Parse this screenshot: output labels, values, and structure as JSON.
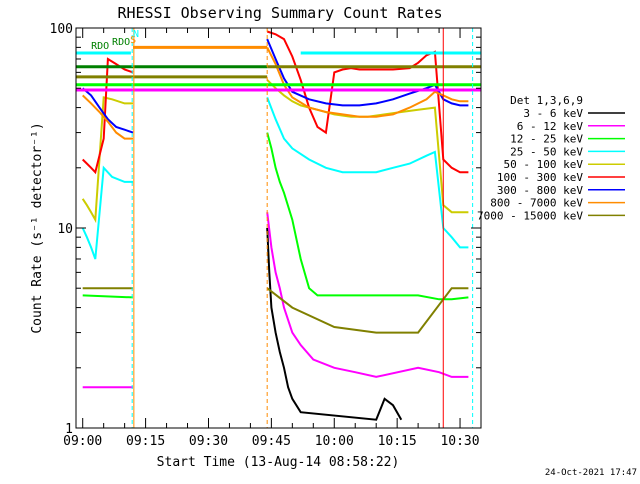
{
  "chart_data": {
    "type": "line",
    "title": "RHESSI Observing Summary Count Rates",
    "xlabel": "Start Time (13-Aug-14 08:58:22)",
    "ylabel": "Count Rate (s⁻¹ detector⁻¹)",
    "x_ticks": [
      "09:00",
      "09:15",
      "09:30",
      "09:45",
      "10:00",
      "10:15",
      "10:30"
    ],
    "x_tick_minutes": [
      0,
      15,
      30,
      45,
      60,
      75,
      90
    ],
    "x_range_minutes": [
      -1.6,
      95
    ],
    "y_scale": "log",
    "ylim": [
      1,
      100
    ],
    "y_ticks": [
      "1",
      "10",
      "100"
    ],
    "legend_title": "Det 1,3,6,9",
    "legend_position": "right",
    "series": [
      {
        "name": "3 - 6 keV",
        "color": "#000000",
        "points": [
          [
            44,
            10
          ],
          [
            44.5,
            6
          ],
          [
            45,
            4
          ],
          [
            46,
            3
          ],
          [
            47,
            2.4
          ],
          [
            48,
            2
          ],
          [
            49,
            1.6
          ],
          [
            50,
            1.4
          ],
          [
            52,
            1.2
          ],
          [
            70,
            1.1
          ],
          [
            72,
            1.4
          ],
          [
            74,
            1.3
          ],
          [
            76,
            1.1
          ]
        ]
      },
      {
        "name": "6 - 12 keV",
        "color": "#ff00ff",
        "points": [
          [
            0,
            1.6
          ],
          [
            12,
            1.6
          ],
          [
            44,
            12
          ],
          [
            45,
            8
          ],
          [
            46,
            6
          ],
          [
            47,
            5
          ],
          [
            48,
            4
          ],
          [
            50,
            3
          ],
          [
            52,
            2.6
          ],
          [
            55,
            2.2
          ],
          [
            60,
            2
          ],
          [
            65,
            1.9
          ],
          [
            70,
            1.8
          ],
          [
            80,
            2
          ],
          [
            85,
            1.9
          ],
          [
            88,
            1.8
          ],
          [
            92,
            1.8
          ]
        ]
      },
      {
        "name": "12 - 25 keV",
        "color": "#00ff00",
        "points": [
          [
            0,
            4.6
          ],
          [
            12,
            4.5
          ],
          [
            44,
            30
          ],
          [
            45,
            25
          ],
          [
            46,
            20
          ],
          [
            47,
            17
          ],
          [
            48,
            15
          ],
          [
            50,
            11
          ],
          [
            52,
            7
          ],
          [
            54,
            5
          ],
          [
            56,
            4.6
          ],
          [
            60,
            4.6
          ],
          [
            70,
            4.6
          ],
          [
            80,
            4.6
          ],
          [
            85,
            4.4
          ],
          [
            88,
            4.4
          ],
          [
            92,
            4.5
          ]
        ]
      },
      {
        "name": "25 - 50 keV",
        "color": "#00ffff",
        "points": [
          [
            0,
            10
          ],
          [
            1,
            9
          ],
          [
            2,
            8
          ],
          [
            3,
            7
          ],
          [
            5,
            20
          ],
          [
            7,
            18
          ],
          [
            10,
            17
          ],
          [
            12,
            17
          ],
          [
            44,
            45
          ],
          [
            46,
            35
          ],
          [
            48,
            28
          ],
          [
            50,
            25
          ],
          [
            54,
            22
          ],
          [
            58,
            20
          ],
          [
            62,
            19
          ],
          [
            66,
            19
          ],
          [
            70,
            19
          ],
          [
            74,
            20
          ],
          [
            78,
            21
          ],
          [
            82,
            23
          ],
          [
            84,
            24
          ],
          [
            86,
            10
          ],
          [
            88,
            9
          ],
          [
            90,
            8
          ],
          [
            92,
            8
          ]
        ]
      },
      {
        "name": "50 - 100 keV",
        "color": "#cccc00",
        "points": [
          [
            0,
            14
          ],
          [
            1,
            13
          ],
          [
            2,
            12
          ],
          [
            3,
            11
          ],
          [
            5,
            45
          ],
          [
            7,
            44
          ],
          [
            10,
            42
          ],
          [
            12,
            42
          ],
          [
            44,
            55
          ],
          [
            46,
            50
          ],
          [
            48,
            46
          ],
          [
            50,
            43
          ],
          [
            52,
            41
          ],
          [
            56,
            39
          ],
          [
            60,
            37
          ],
          [
            64,
            36
          ],
          [
            68,
            36
          ],
          [
            72,
            37
          ],
          [
            76,
            38
          ],
          [
            80,
            39
          ],
          [
            84,
            40
          ],
          [
            86,
            13
          ],
          [
            88,
            12
          ],
          [
            90,
            12
          ],
          [
            92,
            12
          ]
        ]
      },
      {
        "name": "100 - 300 keV",
        "color": "#ff0000",
        "points": [
          [
            0,
            22
          ],
          [
            1,
            21
          ],
          [
            2,
            20
          ],
          [
            3,
            19
          ],
          [
            5,
            28
          ],
          [
            6,
            70
          ],
          [
            8,
            66
          ],
          [
            10,
            62
          ],
          [
            12,
            60
          ],
          [
            44,
            96
          ],
          [
            46,
            93
          ],
          [
            48,
            88
          ],
          [
            50,
            72
          ],
          [
            52,
            55
          ],
          [
            54,
            40
          ],
          [
            56,
            32
          ],
          [
            58,
            30
          ],
          [
            60,
            60
          ],
          [
            62,
            62
          ],
          [
            64,
            63
          ],
          [
            66,
            62
          ],
          [
            70,
            62
          ],
          [
            74,
            62
          ],
          [
            78,
            63
          ],
          [
            80,
            67
          ],
          [
            82,
            73
          ],
          [
            84,
            76
          ],
          [
            86,
            22
          ],
          [
            88,
            20
          ],
          [
            90,
            19
          ],
          [
            92,
            19
          ]
        ]
      },
      {
        "name": "300 - 800 keV",
        "color": "#0000ff",
        "points": [
          [
            0,
            50
          ],
          [
            2,
            46
          ],
          [
            4,
            40
          ],
          [
            6,
            35
          ],
          [
            8,
            32
          ],
          [
            10,
            31
          ],
          [
            12,
            30
          ],
          [
            44,
            88
          ],
          [
            46,
            70
          ],
          [
            48,
            56
          ],
          [
            50,
            48
          ],
          [
            54,
            44
          ],
          [
            58,
            42
          ],
          [
            62,
            41
          ],
          [
            66,
            41
          ],
          [
            70,
            42
          ],
          [
            74,
            44
          ],
          [
            78,
            47
          ],
          [
            82,
            50
          ],
          [
            84,
            52
          ],
          [
            86,
            44
          ],
          [
            88,
            42
          ],
          [
            90,
            41
          ],
          [
            92,
            41
          ]
        ]
      },
      {
        "name": "800 - 7000 keV",
        "color": "#ff8c00",
        "points": [
          [
            0,
            46
          ],
          [
            2,
            42
          ],
          [
            4,
            38
          ],
          [
            6,
            34
          ],
          [
            8,
            30
          ],
          [
            10,
            28
          ],
          [
            12,
            28
          ],
          [
            44,
            80
          ],
          [
            46,
            66
          ],
          [
            48,
            52
          ],
          [
            50,
            45
          ],
          [
            54,
            40
          ],
          [
            58,
            38
          ],
          [
            62,
            37
          ],
          [
            66,
            36
          ],
          [
            70,
            36
          ],
          [
            74,
            37
          ],
          [
            78,
            40
          ],
          [
            82,
            44
          ],
          [
            84,
            48
          ],
          [
            86,
            46
          ],
          [
            88,
            44
          ],
          [
            90,
            43
          ],
          [
            92,
            43
          ]
        ]
      },
      {
        "name": "7000 - 15000 keV",
        "color": "#808000",
        "points": [
          [
            0,
            5
          ],
          [
            12,
            5
          ],
          [
            44,
            5
          ],
          [
            50,
            4
          ],
          [
            60,
            3.2
          ],
          [
            70,
            3
          ],
          [
            80,
            3
          ],
          [
            88,
            5
          ],
          [
            92,
            5
          ]
        ]
      }
    ],
    "annotations": [
      "S",
      "N",
      "RDO",
      "RDO"
    ]
  },
  "footer": {
    "date": "24-Oct-2021 17:47"
  }
}
